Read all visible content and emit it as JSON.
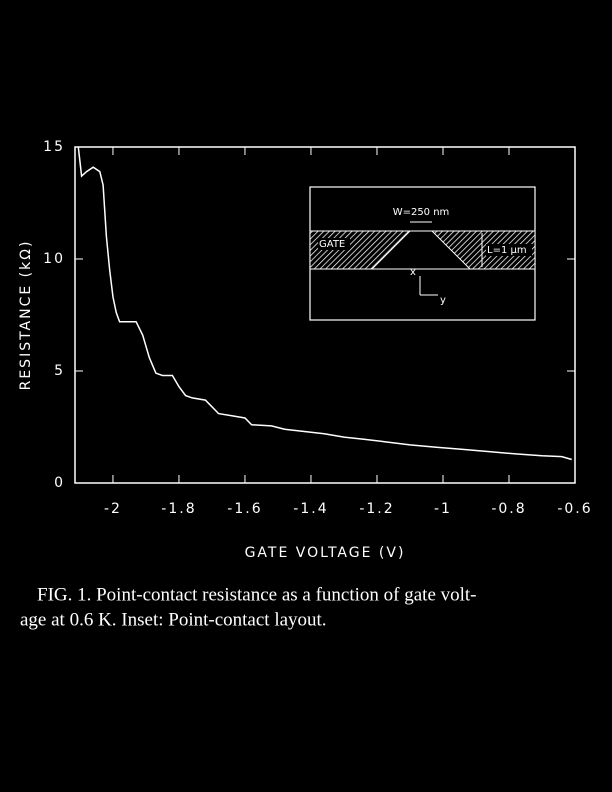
{
  "chart_data": {
    "type": "line",
    "xlabel": "GATE VOLTAGE   (V)",
    "ylabel": "RESISTANCE  (kΩ)",
    "x": [
      -2.105,
      -2.095,
      -2.08,
      -2.06,
      -2.04,
      -2.03,
      -2.02,
      -2.01,
      -2.0,
      -1.99,
      -1.98,
      -1.96,
      -1.93,
      -1.91,
      -1.89,
      -1.87,
      -1.85,
      -1.82,
      -1.8,
      -1.78,
      -1.76,
      -1.72,
      -1.7,
      -1.68,
      -1.64,
      -1.6,
      -1.58,
      -1.52,
      -1.48,
      -1.42,
      -1.36,
      -1.3,
      -1.24,
      -1.18,
      -1.1,
      -1.02,
      -0.94,
      -0.86,
      -0.78,
      -0.7,
      -0.64,
      -0.61
    ],
    "values": [
      15.0,
      13.7,
      13.9,
      14.1,
      13.9,
      13.3,
      11.0,
      9.5,
      8.3,
      7.6,
      7.2,
      7.2,
      7.2,
      6.6,
      5.6,
      4.9,
      4.8,
      4.8,
      4.3,
      3.9,
      3.8,
      3.7,
      3.4,
      3.1,
      3.0,
      2.9,
      2.6,
      2.55,
      2.4,
      2.3,
      2.2,
      2.05,
      1.95,
      1.85,
      1.7,
      1.6,
      1.5,
      1.4,
      1.3,
      1.22,
      1.18,
      1.05
    ],
    "color": "#ffffff",
    "xlim": [
      -2.115,
      -0.6
    ],
    "xticks": [
      -2,
      -1.8,
      -1.6,
      -1.4,
      -1.2,
      -1,
      -0.8,
      -0.6
    ],
    "ylim": [
      0,
      15
    ],
    "yticks": [
      0,
      5,
      10,
      15
    ],
    "annotations": [
      "W=250 nm",
      "GATE",
      "L=1 μm",
      "x",
      "y"
    ]
  },
  "caption": [
    "FIG. 1.  Point-contact resistance as a function of gate volt-",
    "age at 0.6 K.  Inset:  Point-contact layout."
  ]
}
